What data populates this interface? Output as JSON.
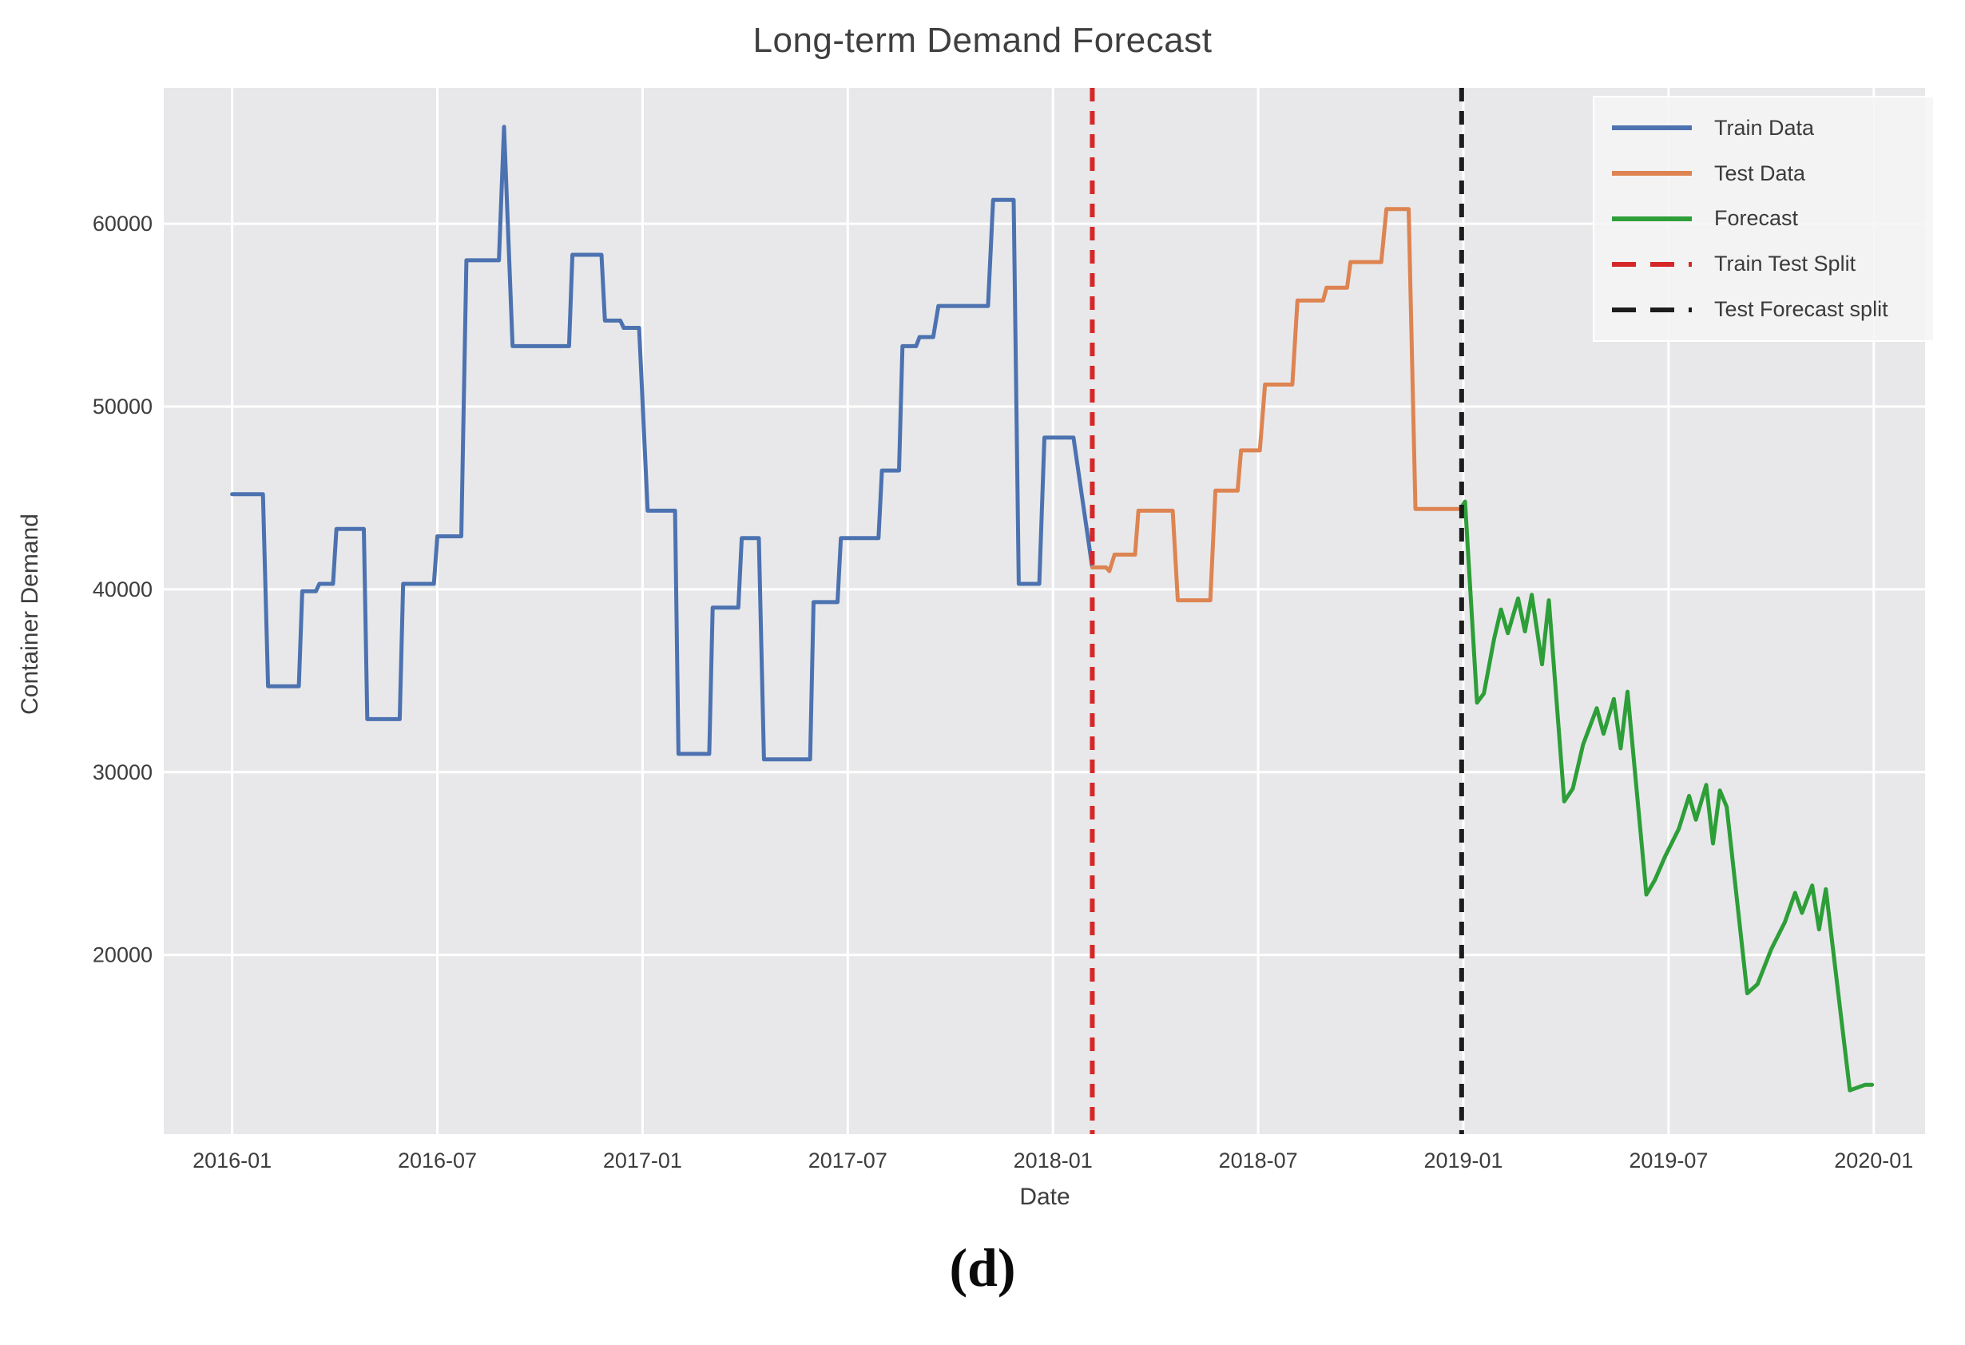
{
  "figure": {
    "caption": "(d)"
  },
  "chart": {
    "title": "Long-term Demand Forecast",
    "xlabel": "Date",
    "ylabel": "Container Demand",
    "legend_entries": [
      {
        "label": "Train Data",
        "color": "#4c72b0",
        "dash": false
      },
      {
        "label": "Test Data",
        "color": "#dd8452",
        "dash": false
      },
      {
        "label": "Forecast",
        "color": "#2d9e38",
        "dash": false
      },
      {
        "label": "Train Test Split",
        "color": "#d62728",
        "dash": true
      },
      {
        "label": "Test Forecast split",
        "color": "#1c1c1c",
        "dash": true
      }
    ],
    "colors": {
      "plot_background": "#e8e8ea",
      "grid": "#ffffff",
      "text": "#3d3d3d"
    }
  },
  "chart_data": {
    "type": "line",
    "title": "Long-term Demand Forecast",
    "xlabel": "Date",
    "ylabel": "Container Demand",
    "x_unit": "months since 2016-01",
    "xlim": [
      -2.0,
      49.5
    ],
    "ylim": [
      10200,
      67430
    ],
    "grid": true,
    "legend_position": "upper right",
    "xticks": [
      {
        "m": 0,
        "label": "2016-01"
      },
      {
        "m": 6,
        "label": "2016-07"
      },
      {
        "m": 12,
        "label": "2017-01"
      },
      {
        "m": 18,
        "label": "2017-07"
      },
      {
        "m": 24,
        "label": "2018-01"
      },
      {
        "m": 30,
        "label": "2018-07"
      },
      {
        "m": 36,
        "label": "2019-01"
      },
      {
        "m": 42,
        "label": "2019-07"
      },
      {
        "m": 48,
        "label": "2020-01"
      }
    ],
    "yticks": [
      20000,
      30000,
      40000,
      50000,
      60000
    ],
    "series": [
      {
        "name": "Train Data",
        "color": "#4c72b0",
        "points": [
          [
            0,
            45200
          ],
          [
            0.9,
            45200
          ],
          [
            1.05,
            34700
          ],
          [
            1.95,
            34700
          ],
          [
            2.05,
            39900
          ],
          [
            2.45,
            39900
          ],
          [
            2.55,
            40300
          ],
          [
            2.95,
            40300
          ],
          [
            3.05,
            43300
          ],
          [
            3.85,
            43300
          ],
          [
            3.95,
            32900
          ],
          [
            4.9,
            32900
          ],
          [
            5.0,
            40300
          ],
          [
            5.9,
            40300
          ],
          [
            6.0,
            42900
          ],
          [
            6.7,
            42900
          ],
          [
            6.85,
            58000
          ],
          [
            7.8,
            58000
          ],
          [
            7.95,
            65300
          ],
          [
            8.2,
            53300
          ],
          [
            9.85,
            53300
          ],
          [
            9.95,
            58300
          ],
          [
            10.8,
            58300
          ],
          [
            10.9,
            54700
          ],
          [
            11.35,
            54700
          ],
          [
            11.45,
            54300
          ],
          [
            11.9,
            54300
          ],
          [
            12.15,
            44300
          ],
          [
            12.95,
            44300
          ],
          [
            13.05,
            31000
          ],
          [
            13.95,
            31000
          ],
          [
            14.05,
            39000
          ],
          [
            14.8,
            39000
          ],
          [
            14.9,
            42800
          ],
          [
            15.4,
            42800
          ],
          [
            15.55,
            30700
          ],
          [
            16.9,
            30700
          ],
          [
            17.0,
            39300
          ],
          [
            17.7,
            39300
          ],
          [
            17.8,
            42800
          ],
          [
            18.9,
            42800
          ],
          [
            19.0,
            46500
          ],
          [
            19.5,
            46500
          ],
          [
            19.6,
            53300
          ],
          [
            20.0,
            53300
          ],
          [
            20.1,
            53800
          ],
          [
            20.5,
            53800
          ],
          [
            20.65,
            55500
          ],
          [
            22.1,
            55500
          ],
          [
            22.25,
            61300
          ],
          [
            22.85,
            61300
          ],
          [
            23.0,
            40300
          ],
          [
            23.6,
            40300
          ],
          [
            23.75,
            48300
          ],
          [
            24.6,
            48300
          ],
          [
            25.15,
            41200
          ]
        ]
      },
      {
        "name": "Test Data",
        "color": "#dd8452",
        "points": [
          [
            25.15,
            41200
          ],
          [
            25.55,
            41200
          ],
          [
            25.65,
            41000
          ],
          [
            25.8,
            41900
          ],
          [
            26.4,
            41900
          ],
          [
            26.5,
            44300
          ],
          [
            27.5,
            44300
          ],
          [
            27.65,
            39400
          ],
          [
            28.6,
            39400
          ],
          [
            28.75,
            45400
          ],
          [
            29.4,
            45400
          ],
          [
            29.5,
            47600
          ],
          [
            30.05,
            47600
          ],
          [
            30.2,
            51200
          ],
          [
            31.0,
            51200
          ],
          [
            31.15,
            55800
          ],
          [
            31.9,
            55800
          ],
          [
            32.0,
            56500
          ],
          [
            32.6,
            56500
          ],
          [
            32.7,
            57900
          ],
          [
            33.6,
            57900
          ],
          [
            33.75,
            60800
          ],
          [
            34.4,
            60800
          ],
          [
            34.6,
            44400
          ],
          [
            35.95,
            44400
          ]
        ]
      },
      {
        "name": "Forecast",
        "color": "#2d9e38",
        "points": [
          [
            35.95,
            44500
          ],
          [
            36.05,
            44800
          ],
          [
            36.4,
            33800
          ],
          [
            36.6,
            34300
          ],
          [
            36.9,
            37300
          ],
          [
            37.1,
            38900
          ],
          [
            37.3,
            37600
          ],
          [
            37.6,
            39500
          ],
          [
            37.8,
            37700
          ],
          [
            38.0,
            39700
          ],
          [
            38.3,
            35900
          ],
          [
            38.5,
            39400
          ],
          [
            38.95,
            28400
          ],
          [
            39.2,
            29100
          ],
          [
            39.5,
            31500
          ],
          [
            39.9,
            33500
          ],
          [
            40.1,
            32100
          ],
          [
            40.4,
            34000
          ],
          [
            40.6,
            31300
          ],
          [
            40.8,
            34400
          ],
          [
            41.35,
            23300
          ],
          [
            41.6,
            24100
          ],
          [
            41.9,
            25400
          ],
          [
            42.3,
            26900
          ],
          [
            42.6,
            28700
          ],
          [
            42.8,
            27400
          ],
          [
            43.1,
            29300
          ],
          [
            43.3,
            26100
          ],
          [
            43.5,
            29000
          ],
          [
            43.7,
            28100
          ],
          [
            44.3,
            17900
          ],
          [
            44.6,
            18400
          ],
          [
            45.0,
            20300
          ],
          [
            45.4,
            21800
          ],
          [
            45.7,
            23400
          ],
          [
            45.9,
            22300
          ],
          [
            46.2,
            23800
          ],
          [
            46.4,
            21400
          ],
          [
            46.6,
            23600
          ],
          [
            47.3,
            12600
          ],
          [
            47.75,
            12900
          ],
          [
            47.95,
            12900
          ]
        ]
      }
    ],
    "vlines": [
      {
        "name": "Train Test Split",
        "m": 25.15,
        "color": "#d62728"
      },
      {
        "name": "Test Forecast split",
        "m": 35.95,
        "color": "#1c1c1c"
      }
    ]
  }
}
